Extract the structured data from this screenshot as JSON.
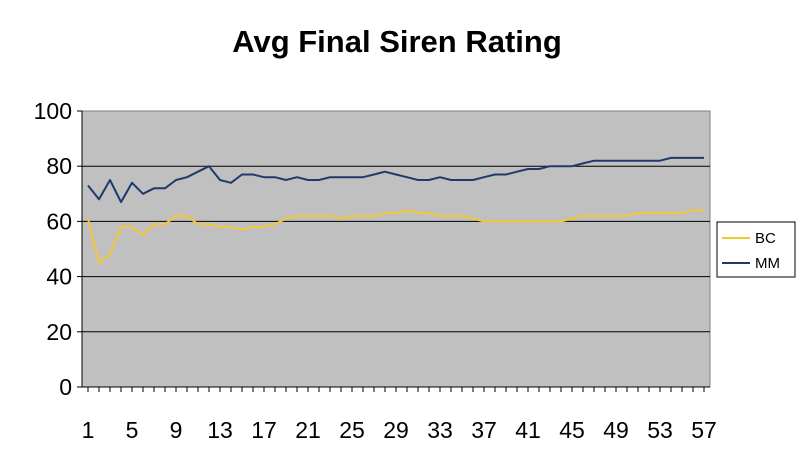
{
  "chart_data": {
    "type": "line",
    "title": "Avg Final Siren Rating",
    "xlabel": "",
    "ylabel": "",
    "ylim": [
      0,
      100
    ],
    "yticks": [
      0,
      20,
      40,
      60,
      80,
      100
    ],
    "xticks": [
      "1",
      "5",
      "9",
      "13",
      "17",
      "21",
      "25",
      "29",
      "33",
      "37",
      "41",
      "45",
      "49",
      "53",
      "57"
    ],
    "x": [
      1,
      2,
      3,
      4,
      5,
      6,
      7,
      8,
      9,
      10,
      11,
      12,
      13,
      14,
      15,
      16,
      17,
      18,
      19,
      20,
      21,
      22,
      23,
      24,
      25,
      26,
      27,
      28,
      29,
      30,
      31,
      32,
      33,
      34,
      35,
      36,
      37,
      38,
      39,
      40,
      41,
      42,
      43,
      44,
      45,
      46,
      47,
      48,
      49,
      50,
      51,
      52,
      53,
      54,
      55,
      56,
      57
    ],
    "grid": true,
    "legend": "right",
    "plot_background": "#c0c0c0",
    "series": [
      {
        "name": "BC",
        "color": "#f5c638",
        "values": [
          61,
          45,
          48,
          58,
          58,
          55,
          59,
          59,
          62,
          62,
          59,
          59,
          58,
          58,
          57,
          58,
          58,
          59,
          61,
          62,
          62,
          62,
          62,
          61,
          62,
          62,
          62,
          63,
          63,
          64,
          63,
          63,
          62,
          62,
          62,
          61,
          60,
          60,
          60,
          60,
          60,
          60,
          60,
          60,
          61,
          62,
          62,
          62,
          62,
          62,
          63,
          63,
          63,
          63,
          63,
          64,
          64
        ]
      },
      {
        "name": "MM",
        "color": "#1f3a6b",
        "values": [
          73,
          68,
          75,
          67,
          74,
          70,
          72,
          72,
          75,
          76,
          78,
          80,
          75,
          74,
          77,
          77,
          76,
          76,
          75,
          76,
          75,
          75,
          76,
          76,
          76,
          76,
          77,
          78,
          77,
          76,
          75,
          75,
          76,
          75,
          75,
          75,
          76,
          77,
          77,
          78,
          79,
          79,
          80,
          80,
          80,
          81,
          82,
          82,
          82,
          82,
          82,
          82,
          82,
          83,
          83,
          83,
          83
        ]
      }
    ]
  }
}
